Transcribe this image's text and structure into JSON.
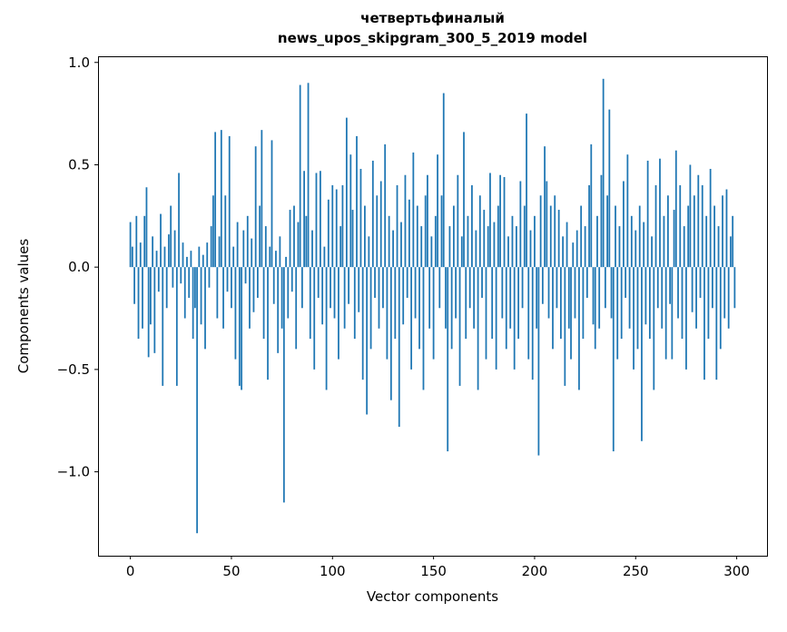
{
  "figure": {
    "title_line1": "четвертьфиналый",
    "title_line2": "news_upos_skipgram_300_5_2019 model"
  },
  "chart_data": {
    "type": "bar",
    "title": "четвертьфиналый\nnews_upos_skipgram_300_5_2019 model",
    "xlabel": "Vector components",
    "ylabel": "Components values",
    "xlim": [
      -16,
      315
    ],
    "ylim": [
      -1.41,
      1.03
    ],
    "x_ticks": [
      0,
      50,
      100,
      150,
      200,
      250,
      300
    ],
    "x_tick_labels": [
      "0",
      "50",
      "100",
      "150",
      "200",
      "250",
      "300"
    ],
    "y_ticks": [
      -1.0,
      -0.5,
      0.0,
      0.5,
      1.0
    ],
    "y_tick_labels": [
      "−1.0",
      "−0.5",
      "0.0",
      "0.5",
      "1.0"
    ],
    "grid": false,
    "legend": "none",
    "bar_color": "#1f77b4",
    "values": [
      0.22,
      0.1,
      -0.18,
      0.25,
      -0.35,
      0.12,
      -0.3,
      0.25,
      0.39,
      -0.44,
      -0.28,
      0.15,
      -0.42,
      0.08,
      -0.12,
      0.26,
      -0.58,
      0.1,
      -0.2,
      0.16,
      0.3,
      -0.1,
      0.18,
      -0.58,
      0.46,
      -0.08,
      0.12,
      -0.25,
      0.05,
      -0.15,
      0.08,
      -0.35,
      -0.2,
      -1.3,
      0.1,
      -0.28,
      0.06,
      -0.4,
      0.12,
      -0.1,
      0.2,
      0.35,
      0.66,
      -0.25,
      0.15,
      0.67,
      -0.3,
      0.35,
      -0.12,
      0.64,
      -0.2,
      0.1,
      -0.45,
      0.22,
      -0.58,
      -0.6,
      0.18,
      -0.08,
      0.25,
      -0.3,
      0.14,
      -0.22,
      0.59,
      -0.15,
      0.3,
      0.67,
      -0.35,
      0.2,
      -0.55,
      0.1,
      0.62,
      -0.18,
      0.08,
      -0.42,
      0.15,
      -0.3,
      -1.15,
      0.05,
      -0.25,
      0.28,
      -0.12,
      0.3,
      -0.4,
      0.22,
      0.89,
      -0.2,
      0.47,
      0.25,
      0.9,
      -0.35,
      0.18,
      -0.5,
      0.46,
      -0.15,
      0.47,
      -0.28,
      0.1,
      -0.6,
      0.33,
      -0.2,
      0.4,
      -0.25,
      0.38,
      -0.45,
      0.2,
      0.4,
      -0.3,
      0.73,
      -0.18,
      0.55,
      0.28,
      -0.35,
      0.64,
      -0.22,
      0.48,
      -0.55,
      0.3,
      -0.72,
      0.15,
      -0.4,
      0.52,
      -0.15,
      0.35,
      -0.3,
      0.42,
      -0.2,
      0.6,
      -0.45,
      0.25,
      -0.65,
      0.18,
      -0.35,
      0.4,
      -0.78,
      0.22,
      -0.28,
      0.45,
      -0.15,
      0.33,
      -0.5,
      0.56,
      -0.25,
      0.3,
      -0.4,
      0.2,
      -0.6,
      0.35,
      0.45,
      -0.3,
      0.15,
      -0.45,
      0.25,
      0.55,
      -0.2,
      0.35,
      0.85,
      -0.3,
      -0.9,
      0.2,
      -0.4,
      0.3,
      -0.25,
      0.45,
      -0.58,
      0.15,
      0.66,
      -0.35,
      0.25,
      -0.2,
      0.4,
      -0.3,
      0.18,
      -0.6,
      0.35,
      -0.15,
      0.28,
      -0.45,
      0.2,
      0.46,
      -0.35,
      0.22,
      -0.5,
      0.3,
      0.45,
      -0.25,
      0.44,
      -0.4,
      0.15,
      -0.3,
      0.25,
      -0.5,
      0.2,
      -0.35,
      0.42,
      -0.2,
      0.3,
      0.75,
      -0.45,
      0.18,
      -0.55,
      0.25,
      -0.3,
      -0.92,
      0.35,
      -0.18,
      0.59,
      0.42,
      -0.25,
      0.3,
      -0.4,
      0.35,
      -0.2,
      0.28,
      -0.35,
      0.15,
      -0.58,
      0.22,
      -0.3,
      -0.45,
      0.12,
      -0.25,
      0.18,
      -0.6,
      0.3,
      -0.35,
      0.2,
      -0.15,
      0.4,
      0.6,
      -0.28,
      -0.4,
      0.25,
      -0.3,
      0.45,
      0.92,
      -0.2,
      0.35,
      0.77,
      -0.25,
      -0.9,
      0.3,
      -0.45,
      0.2,
      -0.35,
      0.42,
      -0.15,
      0.55,
      -0.3,
      0.25,
      -0.5,
      0.18,
      -0.4,
      0.3,
      -0.85,
      0.22,
      -0.28,
      0.52,
      -0.35,
      0.15,
      -0.6,
      0.4,
      -0.2,
      0.53,
      -0.3,
      0.25,
      -0.45,
      0.35,
      -0.18,
      -0.45,
      0.28,
      0.57,
      -0.25,
      0.4,
      -0.35,
      0.2,
      -0.5,
      0.3,
      0.5,
      -0.22,
      0.35,
      -0.3,
      0.45,
      -0.15,
      0.4,
      -0.55,
      0.25,
      -0.35,
      0.48,
      -0.2,
      0.3,
      -0.55,
      0.2,
      -0.4,
      0.35,
      -0.25,
      0.38,
      -0.3,
      0.15,
      0.25,
      -0.2
    ]
  }
}
